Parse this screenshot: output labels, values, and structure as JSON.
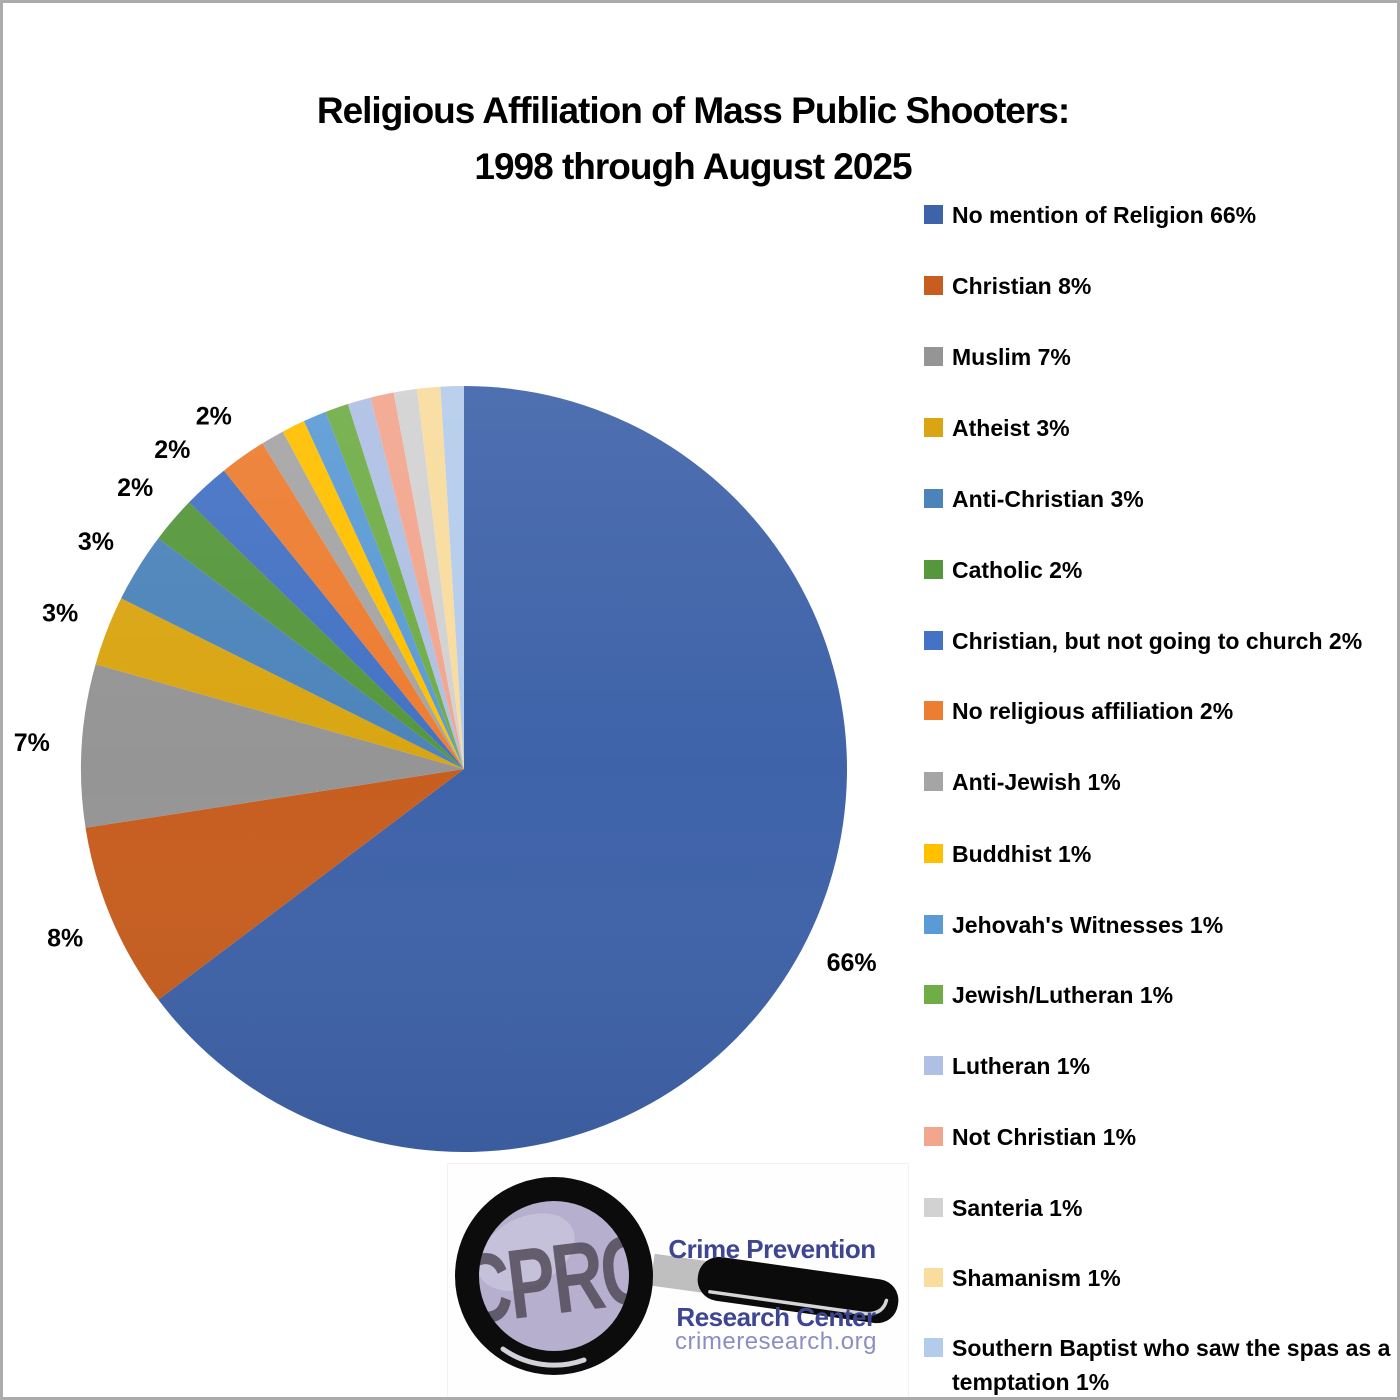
{
  "page": {
    "background": "#FFFFFF",
    "border_color": "#ABABAB"
  },
  "title": {
    "line1": "Religious Affiliation of Mass Public Shooters:",
    "line2": "1998 through August 2025"
  },
  "chart_data": {
    "type": "pie",
    "title": "Religious Affiliation of Mass Public Shooters: 1998 through August 2025",
    "unit": "%",
    "direction": "clockwise",
    "start_angle_deg": 0,
    "legend_position": "right",
    "grid": false,
    "slices": [
      {
        "label": "No mention of Religion",
        "value": 66,
        "color": "#3F63A9",
        "callout": "66%"
      },
      {
        "label": "Christian",
        "value": 8,
        "color": "#C75E20",
        "callout": "8%"
      },
      {
        "label": "Muslim",
        "value": 7,
        "color": "#959595",
        "callout": "7%"
      },
      {
        "label": "Atheist",
        "value": 3,
        "color": "#D9A512",
        "callout": "3%"
      },
      {
        "label": "Anti-Christian",
        "value": 3,
        "color": "#4C84BA",
        "callout": "3%"
      },
      {
        "label": "Catholic",
        "value": 2,
        "color": "#56973C",
        "callout": "2%"
      },
      {
        "label": "Christian, but not going to church",
        "value": 2,
        "color": "#4472C4",
        "callout": "2%"
      },
      {
        "label": "No religious affiliation",
        "value": 2,
        "color": "#ED7D31",
        "callout": "2%"
      },
      {
        "label": "Anti-Jewish",
        "value": 1,
        "color": "#A5A5A5",
        "callout": ""
      },
      {
        "label": "Buddhist",
        "value": 1,
        "color": "#FFC000",
        "callout": ""
      },
      {
        "label": "Jehovah's Witnesses",
        "value": 1,
        "color": "#5B9BD5",
        "callout": ""
      },
      {
        "label": "Jewish/Lutheran",
        "value": 1,
        "color": "#70AD47",
        "callout": ""
      },
      {
        "label": "Lutheran",
        "value": 1,
        "color": "#AFC0E4",
        "callout": ""
      },
      {
        "label": "Not Christian",
        "value": 1,
        "color": "#F2A68E",
        "callout": ""
      },
      {
        "label": "Santeria",
        "value": 1,
        "color": "#D2D2D2",
        "callout": ""
      },
      {
        "label": "Shamanism",
        "value": 1,
        "color": "#F9DC9E",
        "callout": ""
      },
      {
        "label": "Southern Baptist who saw the spas as a temptation",
        "value": 1,
        "color": "#B4CCEC",
        "callout": ""
      }
    ]
  },
  "logo": {
    "acronym": "CPRC",
    "org_line1": "Crime Prevention",
    "org_line2": "Research Center",
    "website": "crimeresearch.org",
    "colors": {
      "org_text": "#3E4691",
      "website_text": "#8A8FC2",
      "lens": "#B6AFCE",
      "lens_highlight": "#CBC5DD",
      "acronym_text": "#554F5D",
      "ring": "#0C0C0C",
      "handle": "#0B0B0B",
      "ferrule": "#BFBFBF"
    }
  }
}
